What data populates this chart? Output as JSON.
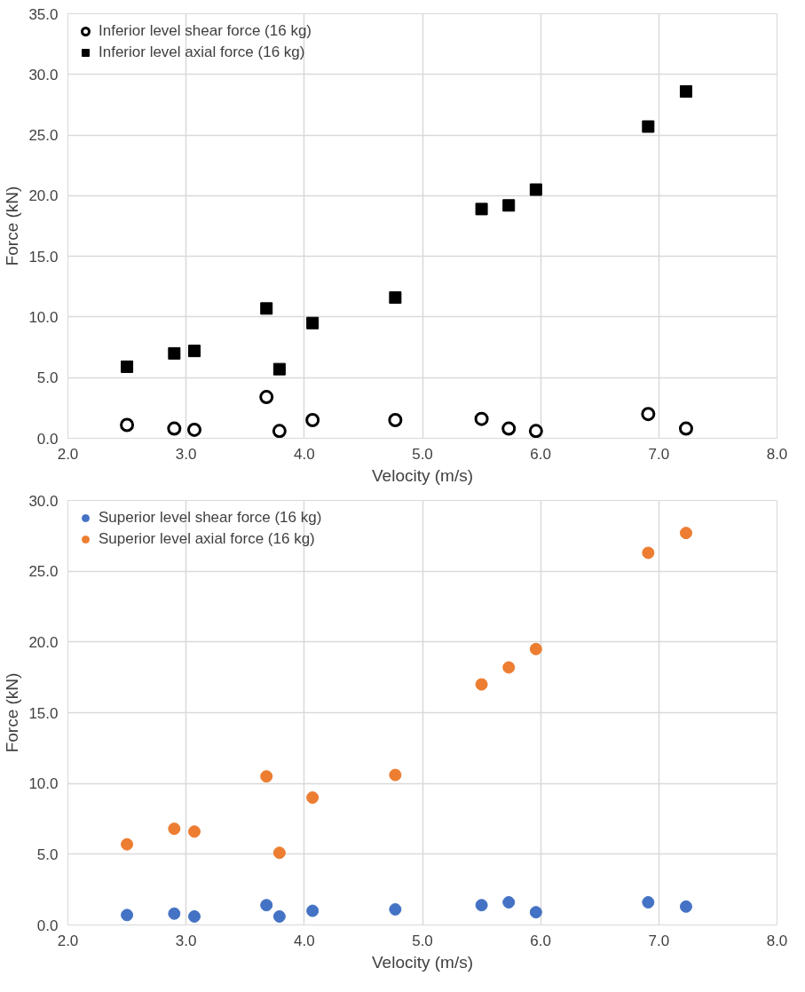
{
  "chart_data": [
    {
      "type": "scatter",
      "xlabel": "Velocity (m/s)",
      "ylabel": "Force (kN)",
      "xlim": [
        2.0,
        8.0
      ],
      "ylim": [
        0.0,
        35.0
      ],
      "xticks": [
        {
          "value": 2,
          "label": "2.0"
        },
        {
          "value": 3,
          "label": "3.0"
        },
        {
          "value": 4,
          "label": "4.0"
        },
        {
          "value": 5,
          "label": "5.0"
        },
        {
          "value": 6,
          "label": "6.0"
        },
        {
          "value": 7,
          "label": "7.0"
        },
        {
          "value": 8,
          "label": "8.0"
        }
      ],
      "yticks": [
        {
          "value": 0,
          "label": "0.0"
        },
        {
          "value": 5,
          "label": "5.0"
        },
        {
          "value": 10,
          "label": "10.0"
        },
        {
          "value": 15,
          "label": "15.0"
        },
        {
          "value": 20,
          "label": "20.0"
        },
        {
          "value": 25,
          "label": "25.0"
        },
        {
          "value": 30,
          "label": "30.0"
        },
        {
          "value": 35,
          "label": "35.0"
        }
      ],
      "grid": true,
      "legend": "top left",
      "x": [
        2.5,
        2.9,
        3.07,
        3.68,
        3.79,
        4.07,
        4.77,
        5.5,
        5.73,
        5.96,
        6.91,
        7.23
      ],
      "series": [
        {
          "name": "Inferior level shear force (16 kg)",
          "color": "#000000",
          "marker": "circle",
          "values": [
            1.1,
            0.8,
            0.7,
            3.4,
            0.6,
            1.5,
            1.5,
            1.6,
            0.8,
            0.6,
            2.0,
            0.8
          ]
        },
        {
          "name": "Inferior level axial force (16 kg)",
          "color": "#000000",
          "marker": "square",
          "values": [
            5.9,
            7.0,
            7.2,
            10.7,
            5.7,
            9.5,
            11.6,
            18.9,
            19.2,
            20.5,
            25.7,
            28.6
          ]
        }
      ]
    },
    {
      "type": "scatter",
      "xlabel": "Velocity (m/s)",
      "ylabel": "Force (kN)",
      "xlim": [
        2.0,
        8.0
      ],
      "ylim": [
        0.0,
        30.0
      ],
      "xticks": [
        {
          "value": 2,
          "label": "2.0"
        },
        {
          "value": 3,
          "label": "3.0"
        },
        {
          "value": 4,
          "label": "4.0"
        },
        {
          "value": 5,
          "label": "5.0"
        },
        {
          "value": 6,
          "label": "6.0"
        },
        {
          "value": 7,
          "label": "7.0"
        },
        {
          "value": 8,
          "label": "8.0"
        }
      ],
      "yticks": [
        {
          "value": 0,
          "label": "0.0"
        },
        {
          "value": 5,
          "label": "5.0"
        },
        {
          "value": 10,
          "label": "10.0"
        },
        {
          "value": 15,
          "label": "15.0"
        },
        {
          "value": 20,
          "label": "20.0"
        },
        {
          "value": 25,
          "label": "25.0"
        },
        {
          "value": 30,
          "label": "30.0"
        }
      ],
      "grid": true,
      "legend": "top left",
      "x": [
        2.5,
        2.9,
        3.07,
        3.68,
        3.79,
        4.07,
        4.77,
        5.5,
        5.73,
        5.96,
        6.91,
        7.23
      ],
      "series": [
        {
          "name": "Superior level shear force (16 kg)",
          "color": "#4472c4",
          "marker": "circle",
          "values": [
            0.7,
            0.8,
            0.6,
            1.4,
            0.6,
            1.0,
            1.1,
            1.4,
            1.6,
            0.9,
            1.6,
            1.3
          ]
        },
        {
          "name": "Superior level axial force (16 kg)",
          "color": "#ed7d31",
          "marker": "circle",
          "values": [
            5.7,
            6.8,
            6.6,
            10.5,
            5.1,
            9.0,
            10.6,
            17.0,
            18.2,
            19.5,
            26.3,
            27.7
          ]
        }
      ]
    }
  ]
}
